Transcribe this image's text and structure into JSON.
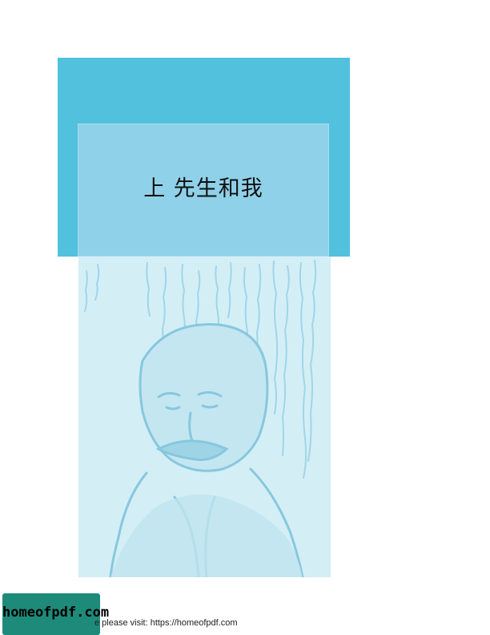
{
  "chapter": {
    "title": "上 先生和我"
  },
  "colors": {
    "band": "#52c1de",
    "panel": "#8fd1e8",
    "illustration": "#d4eef6",
    "badge": "#1e8a7a"
  },
  "footer": {
    "badge_text": "homeofpdf.com",
    "note": "e please visit: https://homeofpdf.com"
  }
}
